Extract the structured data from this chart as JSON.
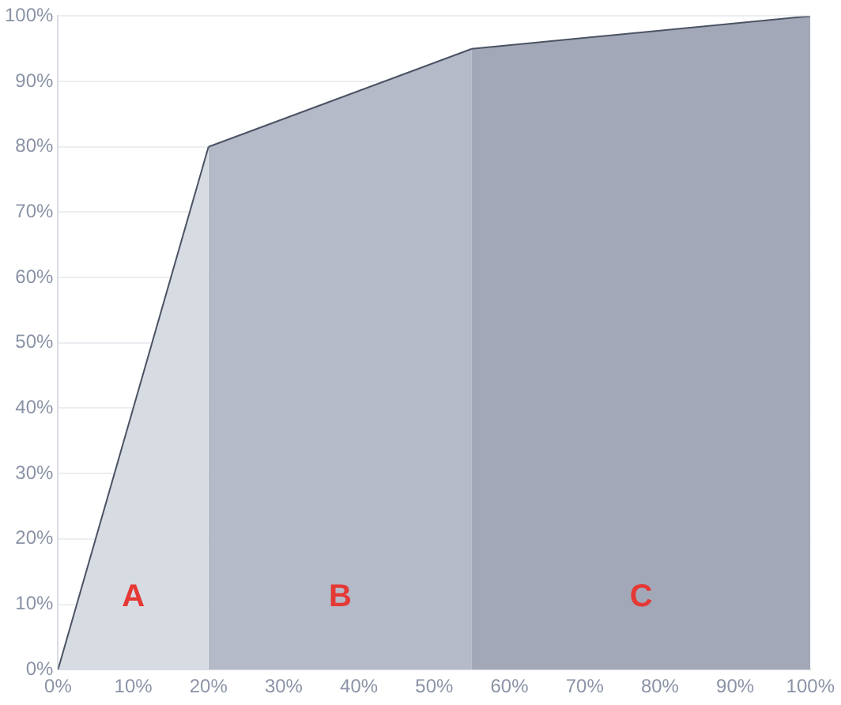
{
  "chart_data": {
    "type": "area",
    "series": [
      {
        "color": "#d7dbe2",
        "x": [
          0,
          20
        ],
        "values": [
          0,
          80
        ]
      },
      {
        "color": "#b4bac7",
        "x": [
          20,
          55
        ],
        "values": [
          80,
          95
        ]
      },
      {
        "color": "#a2a8b7",
        "x": [
          55,
          100
        ],
        "values": [
          95,
          100
        ]
      }
    ],
    "xlim": [
      0,
      100
    ],
    "xticks": [
      {
        "value": 0,
        "label": "0%"
      },
      {
        "value": 10,
        "label": "10%"
      },
      {
        "value": 20,
        "label": "20%"
      },
      {
        "value": 30,
        "label": "30%"
      },
      {
        "value": 40,
        "label": "40%"
      },
      {
        "value": 50,
        "label": "50%"
      },
      {
        "value": 60,
        "label": "60%"
      },
      {
        "value": 70,
        "label": "70%"
      },
      {
        "value": 80,
        "label": "80%"
      },
      {
        "value": 90,
        "label": "90%"
      },
      {
        "value": 100,
        "label": "100%"
      }
    ],
    "ylim": [
      0,
      100
    ],
    "yticks": [
      {
        "value": 0,
        "label": "0%"
      },
      {
        "value": 10,
        "label": "10%"
      },
      {
        "value": 20,
        "label": "20%"
      },
      {
        "value": 30,
        "label": "30%"
      },
      {
        "value": 40,
        "label": "40%"
      },
      {
        "value": 50,
        "label": "50%"
      },
      {
        "value": 60,
        "label": "60%"
      },
      {
        "value": 70,
        "label": "70%"
      },
      {
        "value": 80,
        "label": "80%"
      },
      {
        "value": 90,
        "label": "90%"
      },
      {
        "value": 100,
        "label": "100%"
      }
    ],
    "grid": "y",
    "annotations": [
      "A",
      "B",
      "C"
    ]
  }
}
